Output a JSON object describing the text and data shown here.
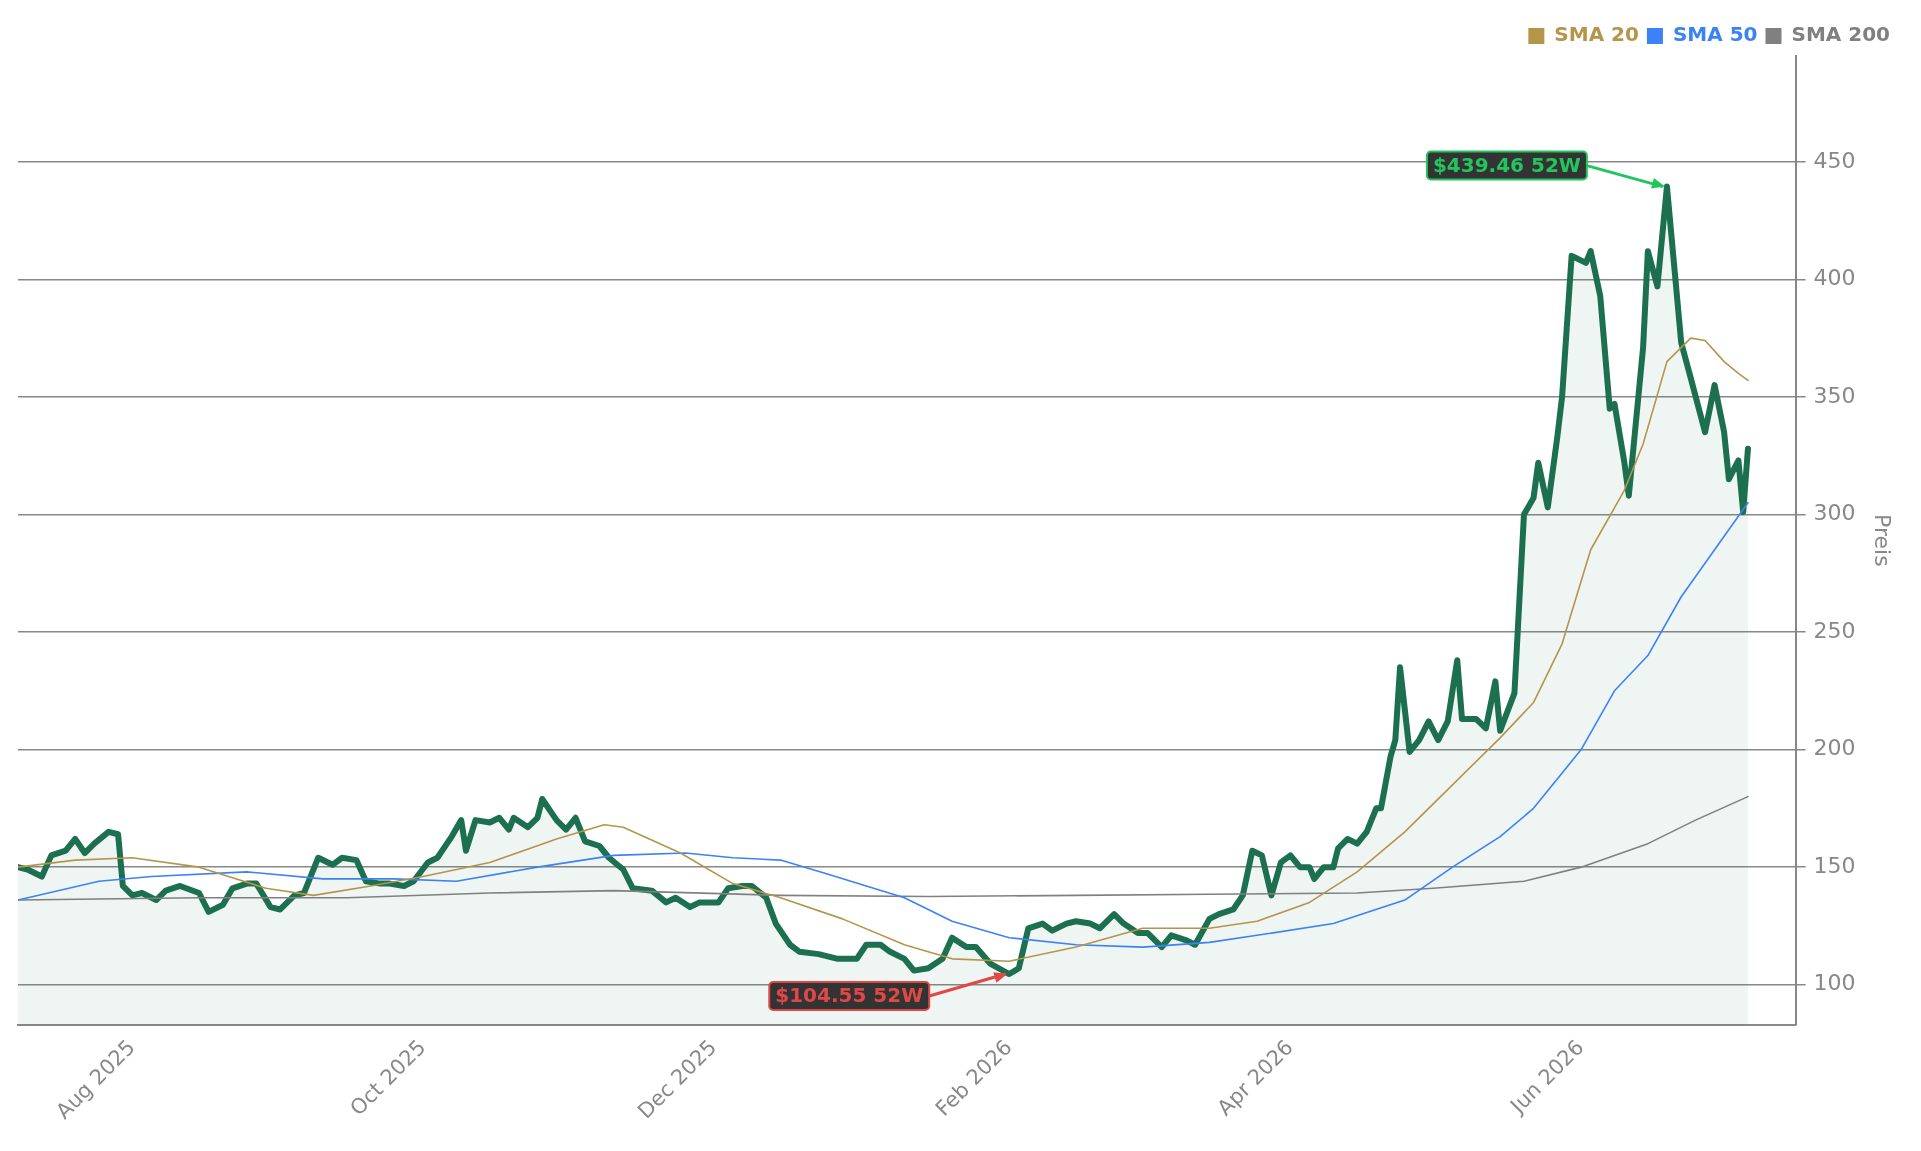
{
  "chart_data": {
    "type": "line",
    "ylabel": "Preis",
    "legend": "top right",
    "grid": "y",
    "marker": "none",
    "line_style": "solid",
    "xlim": [
      "2025-07-08",
      "2026-07-16"
    ],
    "ylim": [
      83,
      495
    ],
    "xticks": [
      {
        "value": "2025-08-01",
        "label": "Aug 2025"
      },
      {
        "value": "2025-10-01",
        "label": "Oct 2025"
      },
      {
        "value": "2025-12-01",
        "label": "Dec 2025"
      },
      {
        "value": "2026-02-01",
        "label": "Feb 2026"
      },
      {
        "value": "2026-04-01",
        "label": "Apr 2026"
      },
      {
        "value": "2026-06-01",
        "label": "Jun 2026"
      }
    ],
    "yticks": [
      100,
      150,
      200,
      250,
      300,
      350,
      400,
      450
    ],
    "annotations": [
      {
        "text": "$439.46 52W",
        "x": "2026-06-19",
        "y": 439.46
      },
      {
        "text": "$104.55 52W",
        "x": "2026-02-01",
        "y": 104.55
      }
    ],
    "series": [
      {
        "type": "area",
        "color": "#1c7050",
        "x": [
          "2025-07-08",
          "2025-07-10",
          "2025-07-13",
          "2025-07-15",
          "2025-07-18",
          "2025-07-20",
          "2025-07-22",
          "2025-07-24",
          "2025-07-27",
          "2025-07-29",
          "2025-07-30",
          "2025-08-01",
          "2025-08-03",
          "2025-08-06",
          "2025-08-08",
          "2025-08-11",
          "2025-08-15",
          "2025-08-17",
          "2025-08-20",
          "2025-08-22",
          "2025-08-25",
          "2025-08-27",
          "2025-08-30",
          "2025-09-01",
          "2025-09-04",
          "2025-09-06",
          "2025-09-09",
          "2025-09-12",
          "2025-09-14",
          "2025-09-17",
          "2025-09-19",
          "2025-09-22",
          "2025-09-24",
          "2025-09-27",
          "2025-09-29",
          "2025-10-02",
          "2025-10-04",
          "2025-10-07",
          "2025-10-09",
          "2025-10-10",
          "2025-10-12",
          "2025-10-15",
          "2025-10-17",
          "2025-10-19",
          "2025-10-20",
          "2025-10-23",
          "2025-10-25",
          "2025-10-26",
          "2025-10-29",
          "2025-10-31",
          "2025-11-02",
          "2025-11-04",
          "2025-11-07",
          "2025-11-09",
          "2025-11-12",
          "2025-11-14",
          "2025-11-18",
          "2025-11-21",
          "2025-11-23",
          "2025-11-26",
          "2025-11-28",
          "2025-12-02",
          "2025-12-04",
          "2025-12-07",
          "2025-12-09",
          "2025-12-12",
          "2025-12-14",
          "2025-12-17",
          "2025-12-19",
          "2025-12-23",
          "2025-12-27",
          "2025-12-31",
          "2026-01-02",
          "2026-01-05",
          "2026-01-07",
          "2026-01-10",
          "2026-01-12",
          "2026-01-15",
          "2026-01-18",
          "2026-01-20",
          "2026-01-23",
          "2026-01-25",
          "2026-01-28",
          "2026-02-01",
          "2026-02-03",
          "2026-02-05",
          "2026-02-08",
          "2026-02-10",
          "2026-02-13",
          "2026-02-15",
          "2026-02-18",
          "2026-02-20",
          "2026-02-23",
          "2026-02-25",
          "2026-02-28",
          "2026-03-02",
          "2026-03-05",
          "2026-03-07",
          "2026-03-10",
          "2026-03-12",
          "2026-03-15",
          "2026-03-17",
          "2026-03-20",
          "2026-03-22",
          "2026-03-24",
          "2026-03-26",
          "2026-03-28",
          "2026-03-30",
          "2026-04-01",
          "2026-04-03",
          "2026-04-05",
          "2026-04-06",
          "2026-04-08",
          "2026-04-10",
          "2026-04-11",
          "2026-04-13",
          "2026-04-15",
          "2026-04-17",
          "2026-04-19",
          "2026-04-20",
          "2026-04-22",
          "2026-04-23",
          "2026-04-24",
          "2026-04-26",
          "2026-04-28",
          "2026-04-30",
          "2026-05-02",
          "2026-05-04",
          "2026-05-06",
          "2026-05-07",
          "2026-05-10",
          "2026-05-12",
          "2026-05-14",
          "2026-05-15",
          "2026-05-18",
          "2026-05-20",
          "2026-05-22",
          "2026-05-23",
          "2026-05-25",
          "2026-05-27",
          "2026-05-28",
          "2026-05-30",
          "2026-06-02",
          "2026-06-03",
          "2026-06-05",
          "2026-06-07",
          "2026-06-08",
          "2026-06-10",
          "2026-06-11",
          "2026-06-14",
          "2026-06-15",
          "2026-06-17",
          "2026-06-19",
          "2026-06-22",
          "2026-06-24",
          "2026-06-27",
          "2026-06-29",
          "2026-07-01",
          "2026-07-02",
          "2026-07-04",
          "2026-07-05",
          "2026-07-06"
        ],
        "values": [
          150,
          149,
          146,
          155,
          157,
          162,
          156,
          160,
          165,
          164,
          142,
          138,
          139,
          136,
          140,
          142,
          139,
          131,
          134,
          141,
          143,
          143,
          133,
          132,
          138,
          139,
          154,
          151,
          154,
          153,
          144,
          143,
          143,
          142,
          144,
          152,
          154,
          163,
          170,
          157,
          170,
          169,
          171,
          166,
          171,
          167,
          171,
          179,
          170,
          166,
          171,
          161,
          159,
          154,
          149,
          141,
          140,
          135,
          137,
          133,
          135,
          135,
          141,
          142,
          142,
          137,
          126,
          117,
          114,
          113,
          111,
          111,
          117,
          117,
          114,
          111,
          106,
          107,
          111,
          120,
          116,
          116,
          109,
          104.55,
          107,
          124,
          126,
          123,
          126,
          127,
          126,
          124,
          130,
          126,
          122,
          122,
          116,
          121,
          119,
          117,
          128,
          130,
          132,
          138,
          157,
          155,
          138,
          152,
          155,
          150,
          150,
          145,
          150,
          150,
          158,
          162,
          160,
          165,
          175,
          175,
          197,
          204,
          235,
          199,
          204,
          212,
          204,
          212,
          238,
          213,
          213,
          209,
          229,
          208,
          224,
          300,
          307,
          322,
          303,
          333,
          350,
          410,
          407,
          412,
          393,
          345,
          347,
          323,
          308,
          371,
          412,
          397,
          439.46,
          373,
          358,
          335,
          355,
          335,
          315,
          323,
          301,
          328
        ]
      },
      {
        "name": "SMA 20",
        "color": "#b5954a",
        "x": [
          "2025-07-08",
          "2025-07-20",
          "2025-08-01",
          "2025-08-15",
          "2025-08-29",
          "2025-09-08",
          "2025-09-20",
          "2025-10-01",
          "2025-10-15",
          "2025-10-29",
          "2025-11-08",
          "2025-11-12",
          "2025-11-24",
          "2025-12-05",
          "2025-12-15",
          "2025-12-28",
          "2026-01-10",
          "2026-01-20",
          "2026-02-01",
          "2026-02-15",
          "2026-03-01",
          "2026-03-15",
          "2026-03-25",
          "2026-04-05",
          "2026-04-15",
          "2026-04-25",
          "2026-05-05",
          "2026-05-15",
          "2026-05-22",
          "2026-05-28",
          "2026-06-03",
          "2026-06-10",
          "2026-06-14",
          "2026-06-19",
          "2026-06-24",
          "2026-06-27",
          "2026-07-01",
          "2026-07-04",
          "2026-07-06"
        ],
        "values": [
          150,
          153,
          154,
          150,
          141,
          138,
          142,
          146,
          152,
          162,
          168,
          167,
          156,
          143,
          137,
          128,
          117,
          111,
          110,
          116,
          124,
          124,
          127,
          135,
          148,
          165,
          185,
          205,
          220,
          245,
          285,
          310,
          330,
          365,
          375,
          374,
          365,
          360,
          357
        ]
      },
      {
        "name": "SMA 50",
        "color": "#3b82f6",
        "x": [
          "2025-07-08",
          "2025-07-25",
          "2025-08-05",
          "2025-08-25",
          "2025-09-10",
          "2025-09-25",
          "2025-10-08",
          "2025-10-25",
          "2025-11-10",
          "2025-11-25",
          "2025-12-05",
          "2025-12-15",
          "2025-12-25",
          "2026-01-10",
          "2026-01-20",
          "2026-02-01",
          "2026-02-15",
          "2026-03-01",
          "2026-03-15",
          "2026-03-25",
          "2026-04-10",
          "2026-04-25",
          "2026-05-05",
          "2026-05-15",
          "2026-05-22",
          "2026-06-01",
          "2026-06-08",
          "2026-06-15",
          "2026-06-22",
          "2026-06-29",
          "2026-07-06"
        ],
        "values": [
          136,
          144,
          146,
          148,
          145,
          145,
          144,
          150,
          155,
          156,
          154,
          153,
          147,
          137,
          127,
          120,
          117,
          116,
          118,
          121,
          126,
          136,
          150,
          163,
          175,
          200,
          225,
          240,
          265,
          285,
          305
        ]
      },
      {
        "name": "SMA 200",
        "color": "#808080",
        "x": [
          "2025-07-08",
          "2025-08-15",
          "2025-09-15",
          "2025-10-15",
          "2025-11-10",
          "2025-12-15",
          "2026-01-15",
          "2026-02-15",
          "2026-03-15",
          "2026-04-15",
          "2026-05-01",
          "2026-05-20",
          "2026-06-01",
          "2026-06-15",
          "2026-06-25",
          "2026-07-06"
        ],
        "values": [
          136,
          137,
          137,
          139,
          140,
          138,
          137.5,
          138,
          138.5,
          139,
          141,
          144,
          150,
          160,
          170,
          180
        ]
      }
    ]
  }
}
